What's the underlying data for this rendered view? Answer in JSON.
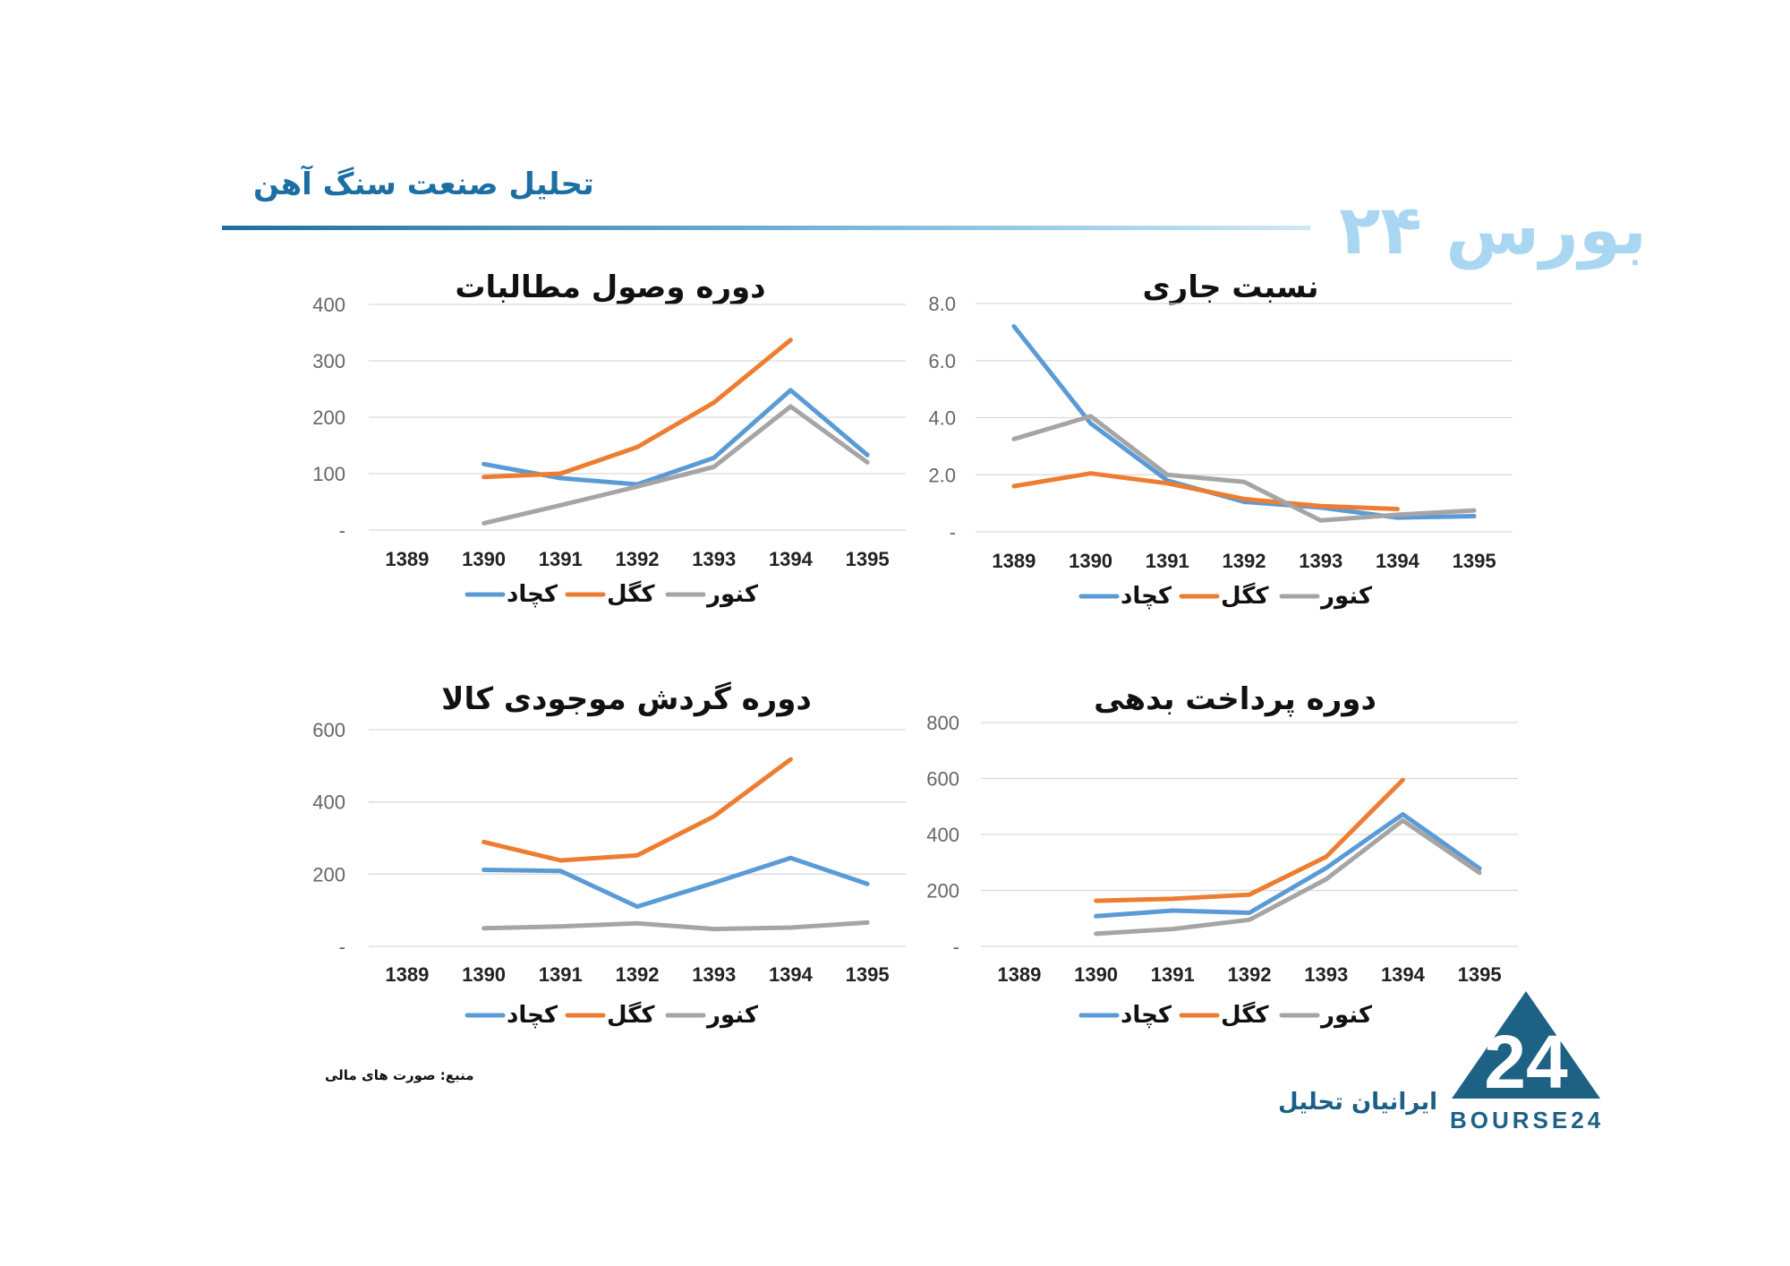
{
  "header": {
    "title": "تحلیل صنعت سنگ آهن",
    "brand": "بورس ۲۴"
  },
  "footer": {
    "source_note": "منبع: صورت های مالی",
    "company": "ایرانیان تحلیل",
    "logo_text": "BOURSE24",
    "logo_number": "24"
  },
  "colors": {
    "kchad": "#5b9bd5",
    "kgol": "#ed7d31",
    "knor": "#a5a5a5",
    "header": "#1b6fa3"
  },
  "chart_data": [
    {
      "id": "current-ratio",
      "type": "line",
      "title": "نسبت جاری",
      "categories": [
        "1389",
        "1390",
        "1391",
        "1392",
        "1393",
        "1394",
        "1395"
      ],
      "y_ticks": [
        "-",
        "2.0",
        "4.0",
        "6.0",
        "8.0"
      ],
      "ylim": [
        0,
        8
      ],
      "grid": true,
      "legend_position": "bottom",
      "series": [
        {
          "name": "کچاد",
          "color": "#5b9bd5",
          "values": [
            7.2,
            3.8,
            1.8,
            1.05,
            0.85,
            0.5,
            0.55
          ]
        },
        {
          "name": "کگل",
          "color": "#ed7d31",
          "values": [
            1.6,
            2.05,
            1.7,
            1.15,
            0.9,
            0.8,
            null
          ]
        },
        {
          "name": "کنور",
          "color": "#a5a5a5",
          "values": [
            3.25,
            4.05,
            2.0,
            1.75,
            0.4,
            0.6,
            0.75
          ]
        }
      ]
    },
    {
      "id": "receivables-period",
      "type": "line",
      "title": "دوره وصول مطالبات",
      "categories": [
        "1389",
        "1390",
        "1391",
        "1392",
        "1393",
        "1394",
        "1395"
      ],
      "y_ticks": [
        "-",
        "100",
        "200",
        "300",
        "400"
      ],
      "ylim": [
        0,
        400
      ],
      "grid": true,
      "legend_position": "bottom",
      "series": [
        {
          "name": "کچاد",
          "color": "#5b9bd5",
          "values": [
            null,
            117,
            92,
            81,
            128,
            248,
            133
          ]
        },
        {
          "name": "کگل",
          "color": "#ed7d31",
          "values": [
            null,
            94,
            100,
            147,
            226,
            337,
            null
          ]
        },
        {
          "name": "کنور",
          "color": "#a5a5a5",
          "values": [
            null,
            12,
            44,
            77,
            112,
            219,
            120
          ]
        }
      ]
    },
    {
      "id": "payables-period",
      "type": "line",
      "title": "دوره پرداخت بدهی",
      "categories": [
        "1389",
        "1390",
        "1391",
        "1392",
        "1393",
        "1394",
        "1395"
      ],
      "y_ticks": [
        "-",
        "200",
        "400",
        "600",
        "800"
      ],
      "ylim": [
        0,
        800
      ],
      "grid": true,
      "legend_position": "bottom",
      "series": [
        {
          "name": "کچاد",
          "color": "#5b9bd5",
          "values": [
            null,
            108,
            128,
            120,
            280,
            472,
            278
          ]
        },
        {
          "name": "کگل",
          "color": "#ed7d31",
          "values": [
            null,
            163,
            170,
            185,
            320,
            595,
            null
          ]
        },
        {
          "name": "کنور",
          "color": "#a5a5a5",
          "values": [
            null,
            45,
            62,
            95,
            240,
            450,
            263
          ]
        }
      ]
    },
    {
      "id": "inventory-period",
      "type": "line",
      "title": "دوره گردش موجودی کالا",
      "categories": [
        "1389",
        "1390",
        "1391",
        "1392",
        "1393",
        "1394",
        "1395"
      ],
      "y_ticks": [
        "-",
        "200",
        "400",
        "600"
      ],
      "ylim": [
        0,
        600
      ],
      "grid": true,
      "legend_position": "bottom",
      "series": [
        {
          "name": "کچاد",
          "color": "#5b9bd5",
          "values": [
            null,
            212,
            209,
            110,
            176,
            245,
            173
          ]
        },
        {
          "name": "کگل",
          "color": "#ed7d31",
          "values": [
            null,
            289,
            238,
            252,
            360,
            518,
            null
          ]
        },
        {
          "name": "کنور",
          "color": "#a5a5a5",
          "values": [
            null,
            50,
            55,
            64,
            48,
            52,
            66
          ]
        }
      ]
    }
  ]
}
